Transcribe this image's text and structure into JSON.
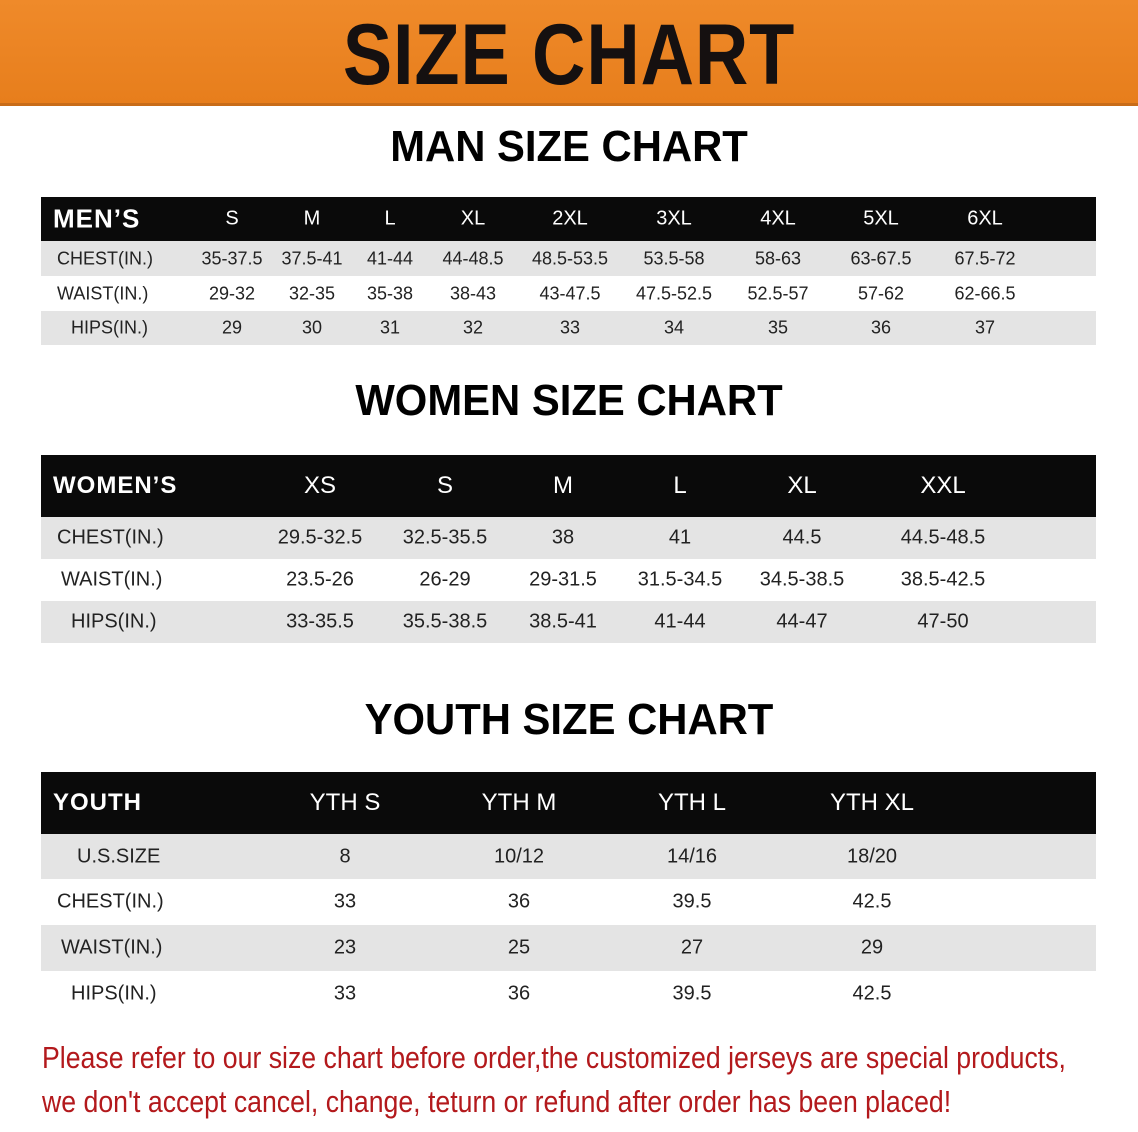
{
  "banner_title": "SIZE CHART",
  "colors": {
    "banner": "#e98320",
    "header_row": "#0a0a0a",
    "row_grey": "#e4e4e4",
    "notice_text": "#b3191c"
  },
  "men": {
    "title": "MAN SIZE CHART",
    "header": [
      "MEN’S",
      "S",
      "M",
      "L",
      "XL",
      "2XL",
      "3XL",
      "4XL",
      "5XL",
      "6XL"
    ],
    "rows": [
      [
        "CHEST(IN.)",
        "35-37.5",
        "37.5-41",
        "41-44",
        "44-48.5",
        "48.5-53.5",
        "53.5-58",
        "58-63",
        "63-67.5",
        "67.5-72"
      ],
      [
        "WAIST(IN.)",
        "29-32",
        "32-35",
        "35-38",
        "38-43",
        "43-47.5",
        "47.5-52.5",
        "52.5-57",
        "57-62",
        "62-66.5"
      ],
      [
        "HIPS(IN.)",
        "29",
        "30",
        "31",
        "32",
        "33",
        "34",
        "35",
        "36",
        "37"
      ]
    ]
  },
  "women": {
    "title": "WOMEN SIZE CHART",
    "header": [
      "WOMEN’S",
      "XS",
      "S",
      "M",
      "L",
      "XL",
      "XXL"
    ],
    "rows": [
      [
        "CHEST(IN.)",
        "29.5-32.5",
        "32.5-35.5",
        "38",
        "41",
        "44.5",
        "44.5-48.5"
      ],
      [
        "WAIST(IN.)",
        "23.5-26",
        "26-29",
        "29-31.5",
        "31.5-34.5",
        "34.5-38.5",
        "38.5-42.5"
      ],
      [
        "HIPS(IN.)",
        "33-35.5",
        "35.5-38.5",
        "38.5-41",
        "41-44",
        "44-47",
        "47-50"
      ]
    ]
  },
  "youth": {
    "title": "YOUTH SIZE CHART",
    "header": [
      "YOUTH",
      "YTH S",
      "YTH M",
      "YTH L",
      "YTH XL"
    ],
    "rows": [
      [
        "U.S.SIZE",
        "8",
        "10/12",
        "14/16",
        "18/20"
      ],
      [
        "CHEST(IN.)",
        "33",
        "36",
        "39.5",
        "42.5"
      ],
      [
        "WAIST(IN.)",
        "23",
        "25",
        "27",
        "29"
      ],
      [
        "HIPS(IN.)",
        "33",
        "36",
        "39.5",
        "42.5"
      ]
    ]
  },
  "notice": {
    "line1": "Please refer to our size chart before order,the customized jerseys are special products,",
    "line2": "we don't accept cancel, change, teturn or refund after order has been placed!"
  }
}
